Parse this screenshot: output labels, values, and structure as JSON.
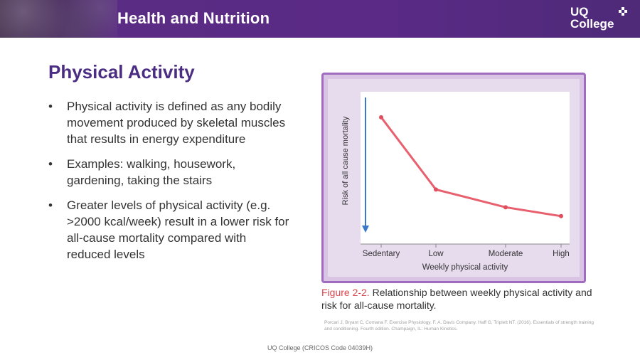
{
  "banner": {
    "title": "Health and Nutrition"
  },
  "logo": {
    "line1": "UQ",
    "line2": "College"
  },
  "slide": {
    "title": "Physical Activity",
    "bullet_symbol": "•",
    "bullets": [
      "Physical activity is defined as any bodily movement produced by skeletal muscles that results in energy expenditure",
      "Examples: walking, housework, gardening, taking the stairs",
      "Greater levels of physical activity (e.g. >2000 kcal/week) result in a lower risk for all-cause mortality compared with reduced levels"
    ]
  },
  "figure": {
    "caption_label": "Figure 2-2.",
    "caption_text": "Relationship between weekly physical activity and risk for all-cause mortality.",
    "citation": "Porcari J, Bryant C, Comana F. Exercise Physiology. F. A. Davis Company. Haff G, Triplett NT. (2016). Essentials of strength training and conditioning. Fourth edition. Champaign, IL: Human Kinetics."
  },
  "chart_data": {
    "type": "line",
    "categories": [
      "Sedentary",
      "Low",
      "Moderate",
      "High"
    ],
    "series": [
      {
        "values": [
          100,
          43,
          29,
          22
        ]
      }
    ],
    "xlabel": "Weekly physical activity",
    "ylabel": "Risk of all cause mortality",
    "ylim": [
      0,
      110
    ],
    "grid": false,
    "line_color": "#e8606e",
    "background": "#ffffff"
  },
  "footer": {
    "text": "UQ College (CRICOS Code 04039H)"
  }
}
